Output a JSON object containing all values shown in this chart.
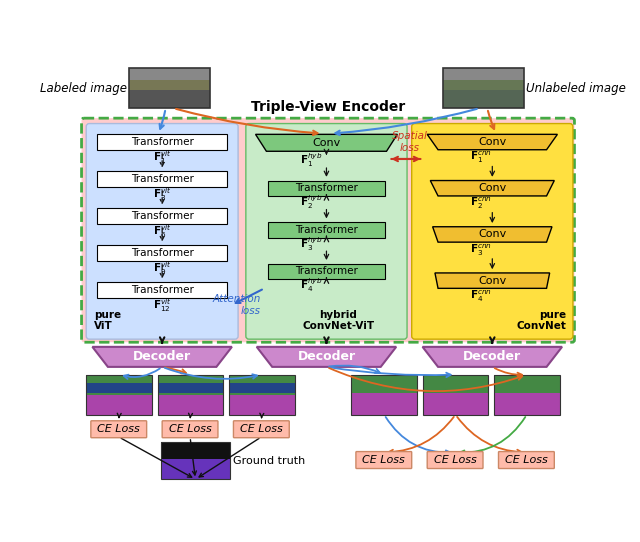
{
  "title": "Triple-View Encoder",
  "labeled_image_text": "Labeled image",
  "unlabeled_image_text": "Unlabeled image",
  "pure_vit_label": "pure\nViT",
  "hybrid_label": "hybrid\nConvNet-ViT",
  "pure_cnn_label": "pure\nConvNet",
  "attention_loss_text": "Attention\nloss",
  "spatial_loss_text": "Spatial\nloss",
  "ground_truth_text": "Ground truth",
  "bg_outer": "#FFCCCC",
  "bg_vit": "#CCE0FF",
  "bg_hybrid": "#C8EBC8",
  "bg_cnn": "#FFE040",
  "vit_block_color": "#B8D4EE",
  "conv_hyb_color": "#7DC87D",
  "conv_cnn_color": "#F0BE30",
  "decoder_color": "#CC88CC",
  "decoder_edge": "#884488",
  "ce_loss_color": "#FFBBAA",
  "ce_loss_edge": "#CC8866",
  "outer_edge": "#44AA44",
  "arrow_blue": "#4488DD",
  "arrow_orange": "#DD6622",
  "arrow_green": "#44AA44",
  "arrow_black": "#111111",
  "attention_color": "#3366CC",
  "spatial_color": "#CC3322"
}
